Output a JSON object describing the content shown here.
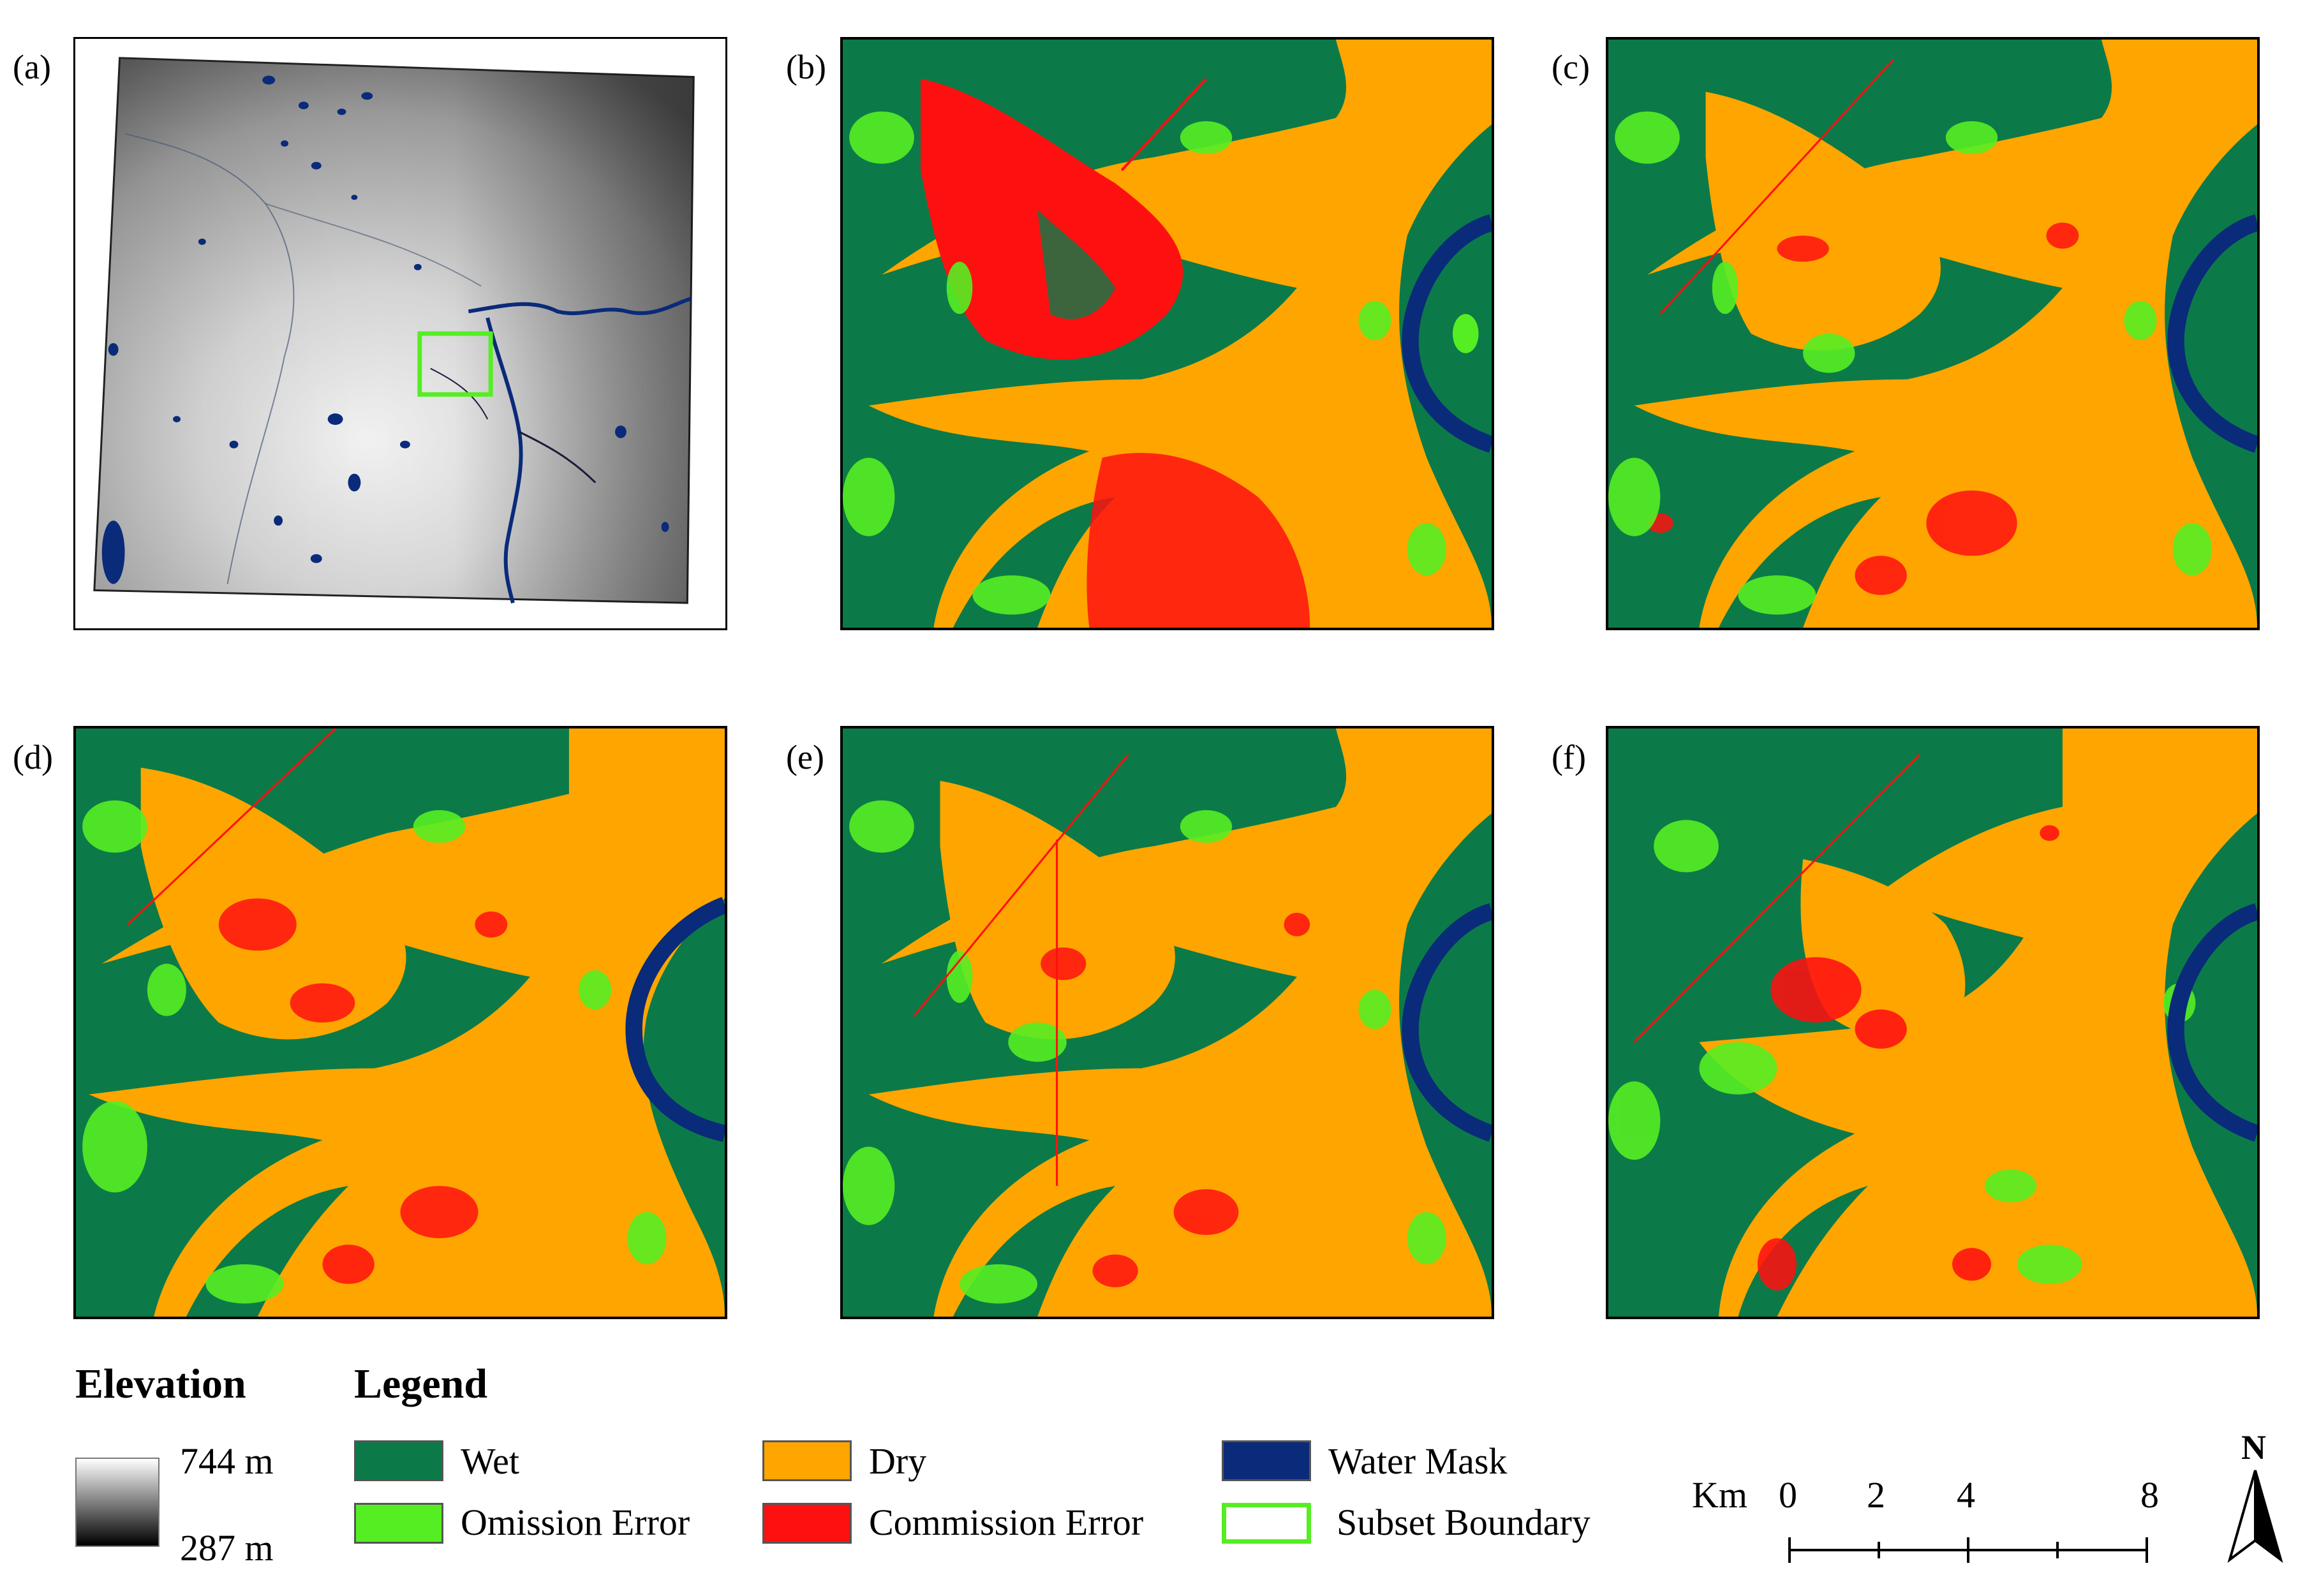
{
  "panels": {
    "a": "(a)",
    "b": "(b)",
    "c": "(c)",
    "d": "(d)",
    "e": "(e)",
    "f": "(f)"
  },
  "elevation": {
    "title": "Elevation",
    "max": "744 m",
    "min": "287 m"
  },
  "legend": {
    "title": "Legend",
    "items": {
      "wet": {
        "label": "Wet",
        "color": "#0b7a48"
      },
      "dry": {
        "label": "Dry",
        "color": "#ffa500"
      },
      "water": {
        "label": "Water Mask",
        "color": "#0a2a7a"
      },
      "omission": {
        "label": "Omission Error",
        "color": "#55ee22"
      },
      "commission": {
        "label": "Commission Error",
        "color": "#ff1010"
      },
      "subset": {
        "label": "Subset Boundary",
        "color": "#55ee22"
      }
    }
  },
  "scale": {
    "unit": "Km",
    "ticks": [
      "0",
      "2",
      "4",
      "8"
    ]
  },
  "north": {
    "label": "N"
  }
}
